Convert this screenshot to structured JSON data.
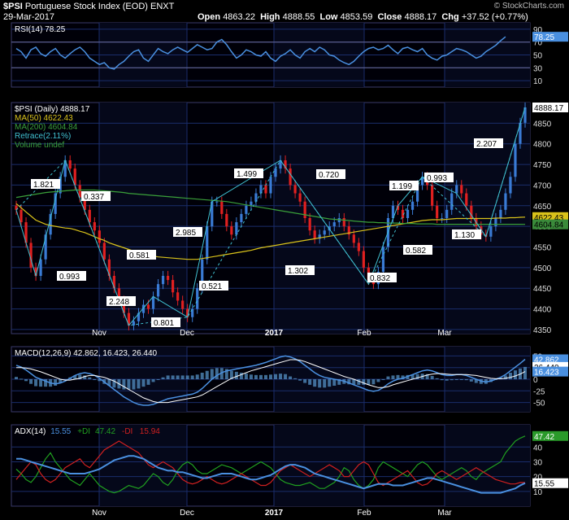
{
  "header": {
    "symbol": "$PSI",
    "name": "Portuguese Stock Index (EOD)",
    "exchange": "ENXT",
    "date": "29-Mar-2017",
    "open_label": "Open",
    "open": "4863.22",
    "high_label": "High",
    "high": "4888.55",
    "low_label": "Low",
    "low": "4853.59",
    "close_label": "Close",
    "close": "4888.17",
    "chg_label": "Chg",
    "chg": "+37.52 (+0.77%)",
    "brand": "© StockCharts.com"
  },
  "colors": {
    "background": "#000000",
    "panel_bg": "#000008",
    "grid": "#1a2d6b",
    "up": "#3a7bd5",
    "down": "#e02020",
    "ma50": "#d9c21a",
    "ma200": "#3aa03a",
    "retrace": "#40c0d0",
    "rsi": "#4a90e0",
    "macd": "#4a90e0",
    "signal": "#ffffff",
    "hist": "#5a9ad0",
    "adx": "#4a90e0",
    "plus_di": "#20a020",
    "minus_di": "#d02020"
  },
  "x_axis": {
    "month_labels": [
      "Nov",
      "Dec",
      "2017",
      "Feb",
      "Mar"
    ]
  },
  "chart_data": [
    {
      "type": "line",
      "panel": "rsi",
      "title": "RSI(14) 78.25",
      "last_value": "78.25",
      "ylim": [
        0,
        100
      ],
      "ticks": [
        "90",
        "70",
        "50",
        "30",
        "10"
      ],
      "values": [
        60,
        55,
        45,
        58,
        62,
        52,
        48,
        55,
        60,
        50,
        45,
        52,
        58,
        62,
        55,
        45,
        40,
        35,
        38,
        30,
        28,
        35,
        40,
        48,
        55,
        58,
        45,
        40,
        50,
        60,
        55,
        52,
        58,
        62,
        58,
        54,
        60,
        66,
        62,
        58,
        60,
        70,
        74,
        66,
        55,
        45,
        50,
        58,
        55,
        50,
        48,
        55,
        45,
        40,
        48,
        52,
        58,
        50,
        45,
        55,
        60,
        55,
        62,
        58,
        50,
        48,
        42,
        38,
        35,
        40,
        48,
        55,
        60,
        62,
        58,
        60,
        65,
        58,
        52,
        60,
        62,
        58,
        55,
        60,
        50,
        45,
        42,
        48,
        50,
        55,
        60,
        58,
        55,
        50,
        45,
        48,
        55,
        60,
        65,
        72,
        78.25
      ]
    },
    {
      "type": "candlestick",
      "panel": "price",
      "legend": [
        "$PSI (Daily) 4888.17",
        "MA(50) 4622.43",
        "MA(200) 4604.84",
        "Retrace(2.11%)",
        "Volume undef"
      ],
      "ylim": [
        4340,
        4900
      ],
      "ticks": [
        "4850",
        "4800",
        "4750",
        "4700",
        "4650",
        "4600",
        "4550",
        "4500",
        "4450",
        "4400",
        "4350"
      ],
      "last_close_label": "4888.17",
      "ma50_label": "4622.43",
      "ma200_label": "4604.84",
      "closes": [
        4640,
        4610,
        4560,
        4500,
        4480,
        4520,
        4580,
        4630,
        4680,
        4720,
        4760,
        4740,
        4700,
        4670,
        4640,
        4610,
        4590,
        4560,
        4520,
        4480,
        4450,
        4420,
        4390,
        4360,
        4370,
        4390,
        4410,
        4400,
        4430,
        4460,
        4480,
        4470,
        4440,
        4420,
        4400,
        4380,
        4400,
        4450,
        4520,
        4600,
        4660,
        4660,
        4630,
        4600,
        4580,
        4610,
        4630,
        4650,
        4660,
        4680,
        4700,
        4680,
        4720,
        4740,
        4760,
        4740,
        4700,
        4680,
        4660,
        4620,
        4590,
        4570,
        4580,
        4590,
        4600,
        4610,
        4620,
        4600,
        4580,
        4560,
        4540,
        4500,
        4470,
        4460,
        4490,
        4550,
        4620,
        4650,
        4640,
        4620,
        4640,
        4660,
        4700,
        4720,
        4700,
        4650,
        4620,
        4620,
        4640,
        4680,
        4700,
        4680,
        4650,
        4620,
        4600,
        4580,
        4575,
        4600,
        4620,
        4640,
        4680,
        4720,
        4800,
        4851,
        4888.17
      ],
      "ma50": [
        4655,
        4645,
        4635,
        4625,
        4615,
        4610,
        4605,
        4602,
        4600,
        4598,
        4596,
        4595,
        4592,
        4588,
        4585,
        4580,
        4575,
        4570,
        4566,
        4560,
        4556,
        4552,
        4548,
        4544,
        4540,
        4536,
        4532,
        4530,
        4528,
        4526,
        4525,
        4524,
        4523,
        4522,
        4521,
        4520,
        4520,
        4520,
        4522,
        4524,
        4526,
        4528,
        4530,
        4532,
        4534,
        4536,
        4538,
        4540,
        4542,
        4545,
        4548,
        4550,
        4552,
        4554,
        4556,
        4558,
        4560,
        4562,
        4564,
        4566,
        4568,
        4570,
        4572,
        4574,
        4576,
        4578,
        4580,
        4582,
        4584,
        4586,
        4588,
        4590,
        4592,
        4594,
        4596,
        4598,
        4600,
        4602,
        4604,
        4606,
        4608,
        4610,
        4612,
        4614,
        4615,
        4616,
        4616,
        4616,
        4617,
        4618,
        4619,
        4619,
        4619,
        4619,
        4619,
        4619,
        4619,
        4619,
        4620,
        4620,
        4620,
        4621,
        4621,
        4622,
        4622.43
      ],
      "ma200": [
        4670,
        4672,
        4674,
        4676,
        4678,
        4680,
        4682,
        4683,
        4684,
        4685,
        4686,
        4687,
        4688,
        4688,
        4688,
        4688,
        4688,
        4687,
        4686,
        4685,
        4684,
        4683,
        4682,
        4680,
        4679,
        4678,
        4677,
        4676,
        4675,
        4674,
        4673,
        4672,
        4671,
        4670,
        4669,
        4668,
        4667,
        4666,
        4665,
        4664,
        4663,
        4662,
        4661,
        4660,
        4658,
        4656,
        4654,
        4652,
        4650,
        4648,
        4646,
        4644,
        4642,
        4640,
        4638,
        4636,
        4634,
        4632,
        4630,
        4628,
        4626,
        4624,
        4622,
        4620,
        4618,
        4617,
        4616,
        4615,
        4614,
        4613,
        4612,
        4611,
        4610,
        4610,
        4609,
        4609,
        4608,
        4608,
        4608,
        4607,
        4607,
        4607,
        4606,
        4606,
        4606,
        4606,
        4605,
        4605,
        4605,
        4605,
        4605,
        4605,
        4605,
        4605,
        4605,
        4605,
        4605,
        4605,
        4605,
        4605,
        4605,
        4605,
        4605,
        4605,
        4604.84
      ],
      "retrace_labels": [
        "1.821",
        "0.337",
        "0.993",
        "0.581",
        "2.248",
        "0.801",
        "2.985",
        "0.521",
        "1.499",
        "0.720",
        "1.302",
        "0.832",
        "1.199",
        "0.582",
        "0.993",
        "1.130",
        "2.207"
      ]
    },
    {
      "type": "line",
      "panel": "macd",
      "title": "MACD(12,26,9) 42.862, 16.423, 26.440",
      "labels": [
        "42.862",
        "26.440",
        "16.423"
      ],
      "ylim": [
        -70,
        70
      ],
      "ticks": [
        "50",
        "25",
        "0",
        "-25",
        "-50"
      ],
      "macd": [
        30,
        26,
        20,
        12,
        4,
        0,
        -4,
        -8,
        -10,
        -8,
        -4,
        2,
        8,
        12,
        14,
        12,
        8,
        2,
        -6,
        -14,
        -22,
        -30,
        -38,
        -44,
        -50,
        -54,
        -56,
        -56,
        -54,
        -50,
        -46,
        -42,
        -40,
        -38,
        -36,
        -34,
        -32,
        -28,
        -20,
        -10,
        0,
        8,
        14,
        18,
        20,
        22,
        24,
        26,
        28,
        30,
        33,
        36,
        40,
        44,
        48,
        50,
        48,
        44,
        38,
        30,
        22,
        14,
        8,
        4,
        2,
        0,
        -2,
        -4,
        -8,
        -12,
        -16,
        -20,
        -24,
        -26,
        -24,
        -18,
        -10,
        -4,
        0,
        2,
        6,
        10,
        14,
        18,
        20,
        18,
        14,
        10,
        8,
        8,
        10,
        10,
        8,
        4,
        0,
        -4,
        -6,
        -4,
        0,
        4,
        10,
        18,
        26,
        34,
        42.862
      ],
      "signal": [
        25,
        25,
        24,
        22,
        19,
        16,
        12,
        8,
        4,
        0,
        -2,
        -2,
        0,
        2,
        6,
        8,
        8,
        6,
        4,
        0,
        -4,
        -10,
        -16,
        -22,
        -28,
        -34,
        -40,
        -44,
        -48,
        -50,
        -50,
        -50,
        -48,
        -46,
        -44,
        -42,
        -40,
        -38,
        -34,
        -28,
        -22,
        -16,
        -10,
        -4,
        2,
        6,
        10,
        14,
        18,
        21,
        24,
        27,
        30,
        33,
        36,
        39,
        42,
        42,
        41,
        38,
        34,
        30,
        26,
        22,
        18,
        14,
        10,
        6,
        3,
        0,
        -4,
        -8,
        -12,
        -15,
        -18,
        -18,
        -16,
        -12,
        -9,
        -6,
        -3,
        0,
        3,
        6,
        9,
        11,
        12,
        12,
        11,
        10,
        10,
        10,
        10,
        9,
        8,
        6,
        4,
        2,
        1,
        1,
        2,
        4,
        7,
        11,
        16.423
      ]
    },
    {
      "type": "line",
      "panel": "adx",
      "title": "ADX(14) 15.55 +DI 47.42 -DI 15.94",
      "adx_label": "ADX(14)",
      "adx_value": "15.55",
      "plus_label": "+DI",
      "plus_value": "47.42",
      "minus_label": "-DI",
      "minus_value": "15.94",
      "ylim": [
        0,
        55
      ],
      "ticks": [
        "40",
        "30",
        "20",
        "10"
      ],
      "adx": [
        32,
        32,
        31,
        30,
        29,
        28,
        27,
        26,
        25,
        24,
        23,
        22,
        22,
        22,
        22,
        23,
        24,
        25,
        27,
        29,
        31,
        32,
        33,
        34,
        34,
        33,
        32,
        30,
        28,
        26,
        25,
        24,
        24,
        23,
        23,
        22,
        21,
        20,
        19,
        19,
        20,
        21,
        22,
        22,
        22,
        21,
        20,
        19,
        18,
        18,
        19,
        20,
        21,
        23,
        25,
        27,
        28,
        28,
        27,
        26,
        24,
        22,
        21,
        20,
        19,
        18,
        17,
        16,
        15,
        14,
        13,
        12,
        13,
        14,
        15,
        15,
        15,
        14,
        14,
        14,
        15,
        16,
        17,
        18,
        19,
        19,
        18,
        17,
        16,
        15,
        14,
        13,
        12,
        11,
        10,
        9,
        9,
        9,
        9,
        9,
        10,
        11,
        12,
        14,
        15.55
      ],
      "plus_di": [
        25,
        22,
        18,
        16,
        20,
        26,
        32,
        36,
        30,
        26,
        22,
        18,
        16,
        14,
        18,
        22,
        18,
        14,
        12,
        10,
        9,
        10,
        12,
        14,
        13,
        12,
        14,
        18,
        22,
        20,
        16,
        14,
        18,
        24,
        28,
        30,
        28,
        24,
        22,
        22,
        24,
        26,
        28,
        27,
        26,
        24,
        22,
        24,
        26,
        28,
        30,
        28,
        26,
        22,
        18,
        16,
        15,
        14,
        14,
        15,
        16,
        14,
        12,
        12,
        14,
        16,
        20,
        26,
        24,
        18,
        14,
        12,
        14,
        18,
        26,
        30,
        28,
        26,
        24,
        22,
        20,
        24,
        28,
        30,
        28,
        24,
        20,
        18,
        20,
        22,
        24,
        26,
        24,
        20,
        18,
        22,
        24,
        26,
        28,
        30,
        36,
        40,
        44,
        46,
        47.42
      ],
      "minus_di": [
        18,
        22,
        26,
        30,
        28,
        22,
        18,
        16,
        18,
        22,
        26,
        28,
        30,
        32,
        28,
        26,
        30,
        34,
        38,
        40,
        42,
        44,
        42,
        40,
        38,
        36,
        32,
        28,
        26,
        28,
        30,
        28,
        26,
        22,
        18,
        16,
        15,
        16,
        18,
        20,
        18,
        16,
        15,
        16,
        18,
        20,
        22,
        20,
        18,
        16,
        14,
        14,
        16,
        20,
        24,
        26,
        28,
        26,
        24,
        22,
        20,
        22,
        24,
        26,
        28,
        26,
        24,
        20,
        20,
        24,
        28,
        30,
        28,
        22,
        16,
        14,
        16,
        18,
        20,
        22,
        24,
        20,
        16,
        14,
        15,
        18,
        22,
        24,
        22,
        20,
        18,
        20,
        22,
        24,
        26,
        24,
        22,
        20,
        18,
        17,
        16,
        15,
        15,
        16,
        15.94
      ]
    }
  ]
}
